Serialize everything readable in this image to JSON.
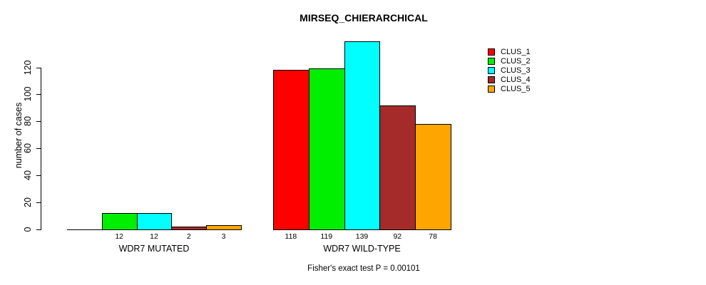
{
  "chart_data": {
    "type": "bar",
    "title": "MIRSEQ_CHIERARCHICAL",
    "ylabel": "number of cases",
    "xlabel": "",
    "annotation": "Fisher's exact test P = 0.00101",
    "ylim": [
      0,
      139
    ],
    "yticks": [
      0,
      20,
      40,
      60,
      80,
      100,
      120
    ],
    "grid": false,
    "legend_position": "top-right",
    "categories": [
      "WDR7 MUTATED",
      "WDR7 WILD-TYPE"
    ],
    "series": [
      {
        "name": "CLUS_1",
        "color": "#ff0000",
        "values": [
          0,
          118
        ]
      },
      {
        "name": "CLUS_2",
        "color": "#00ee00",
        "values": [
          12,
          119
        ]
      },
      {
        "name": "CLUS_3",
        "color": "#00ffff",
        "values": [
          12,
          139
        ]
      },
      {
        "name": "CLUS_4",
        "color": "#a52a2a",
        "values": [
          2,
          92
        ]
      },
      {
        "name": "CLUS_5",
        "color": "#ffa500",
        "values": [
          3,
          78
        ]
      }
    ]
  }
}
